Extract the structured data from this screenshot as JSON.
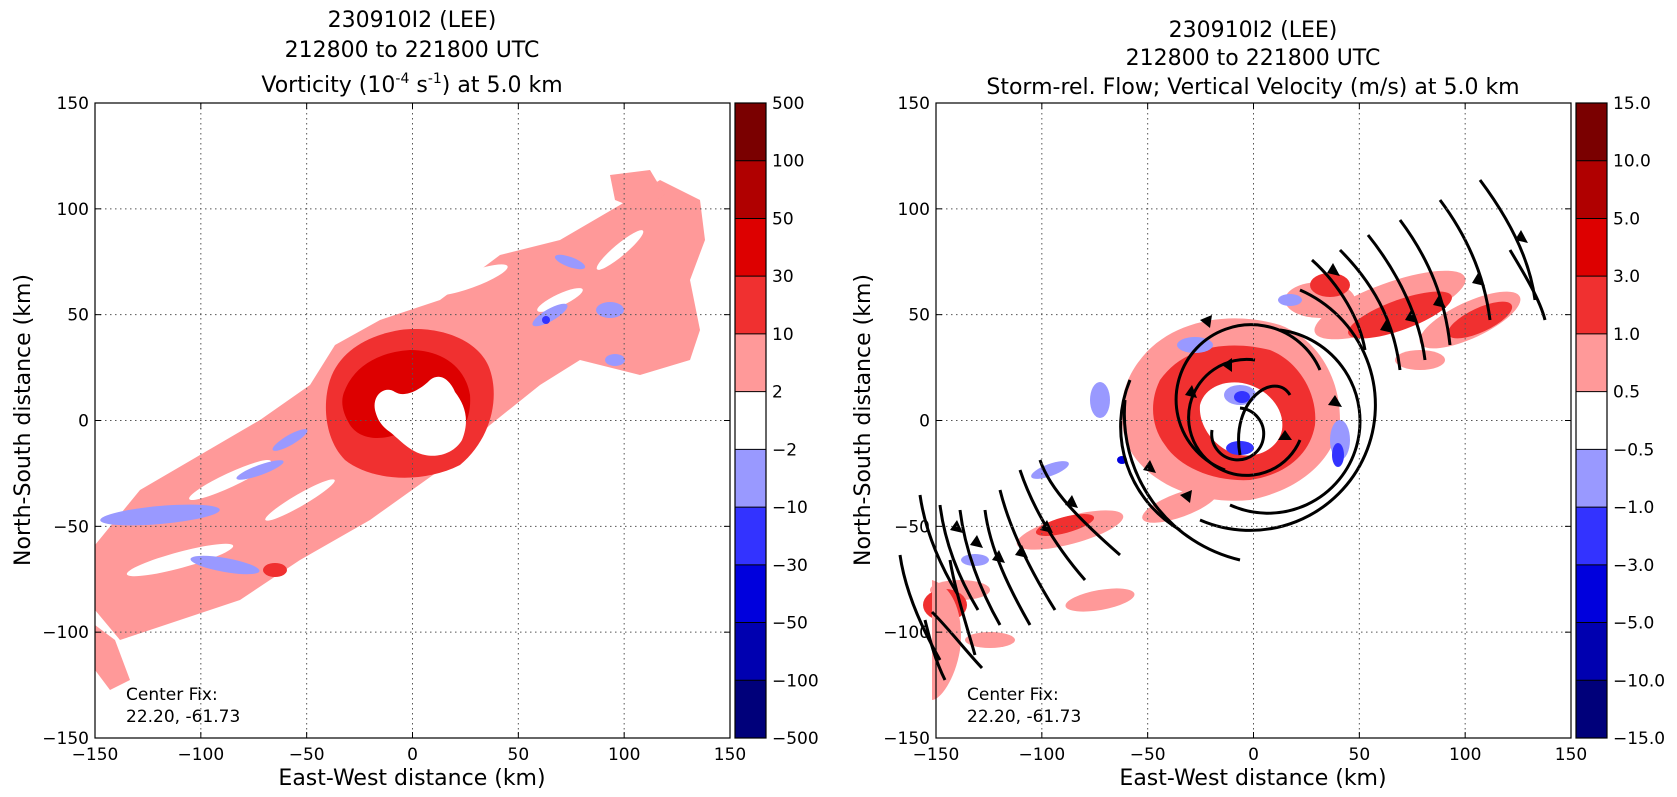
{
  "chart_data": [
    {
      "type": "heatmap",
      "title_lines": [
        "230910I2 (LEE)",
        "212800 to 221800 UTC"
      ],
      "title_prefix": "Vorticity (10",
      "title_sup1": "-4",
      "title_mid": " s",
      "title_sup2": "-1",
      "title_suffix": ") at 5.0 km",
      "xlabel": "East-West distance (km)",
      "ylabel": "North-South distance (km)",
      "xlim": [
        -150,
        150
      ],
      "ylim": [
        -150,
        150
      ],
      "xticks": [
        -150,
        -100,
        -50,
        0,
        50,
        100,
        150
      ],
      "yticks": [
        -150,
        -100,
        -50,
        0,
        50,
        100,
        150
      ],
      "xtick_labels": [
        "−150",
        "−100",
        "−50",
        "0",
        "50",
        "100",
        "150"
      ],
      "ytick_labels": [
        "−150",
        "−100",
        "−50",
        "0",
        "50",
        "100",
        "150"
      ],
      "grid": true,
      "annotation_lines": [
        "Center Fix:",
        "22.20, -61.73"
      ],
      "colorbar": {
        "levels": [
          "500",
          "100",
          "50",
          "30",
          "10",
          "2",
          "−2",
          "−10",
          "−30",
          "−50",
          "−100",
          "−500"
        ],
        "colors": [
          "#7a0000",
          "#b00000",
          "#dd0000",
          "#f03030",
          "#ff9999",
          "#ffffff",
          "#9999ff",
          "#3333ff",
          "#0000dd",
          "#0000b0",
          "#00007a"
        ]
      }
    },
    {
      "type": "heatmap",
      "title_lines": [
        "230910I2 (LEE)",
        "212800 to 221800 UTC",
        "Storm-rel. Flow; Vertical Velocity (m/s) at 5.0 km"
      ],
      "xlabel": "East-West distance (km)",
      "ylabel": "North-South distance (km)",
      "xlim": [
        -150,
        150
      ],
      "ylim": [
        -150,
        150
      ],
      "xticks": [
        -150,
        -100,
        -50,
        0,
        50,
        100,
        150
      ],
      "yticks": [
        -150,
        -100,
        -50,
        0,
        50,
        100,
        150
      ],
      "xtick_labels": [
        "−150",
        "−100",
        "−50",
        "0",
        "50",
        "100",
        "150"
      ],
      "ytick_labels": [
        "−150",
        "−100",
        "−50",
        "0",
        "50",
        "100",
        "150"
      ],
      "grid": true,
      "annotation_lines": [
        "Center Fix:",
        "22.20, -61.73"
      ],
      "colorbar": {
        "levels": [
          "15.0",
          "10.0",
          "5.0",
          "3.0",
          "1.0",
          "0.5",
          "−0.5",
          "−1.0",
          "−3.0",
          "−5.0",
          "−10.0",
          "−15.0"
        ],
        "colors": [
          "#7a0000",
          "#b00000",
          "#dd0000",
          "#f03030",
          "#ff9999",
          "#ffffff",
          "#9999ff",
          "#3333ff",
          "#0000dd",
          "#0000b0",
          "#00007a"
        ]
      }
    }
  ]
}
